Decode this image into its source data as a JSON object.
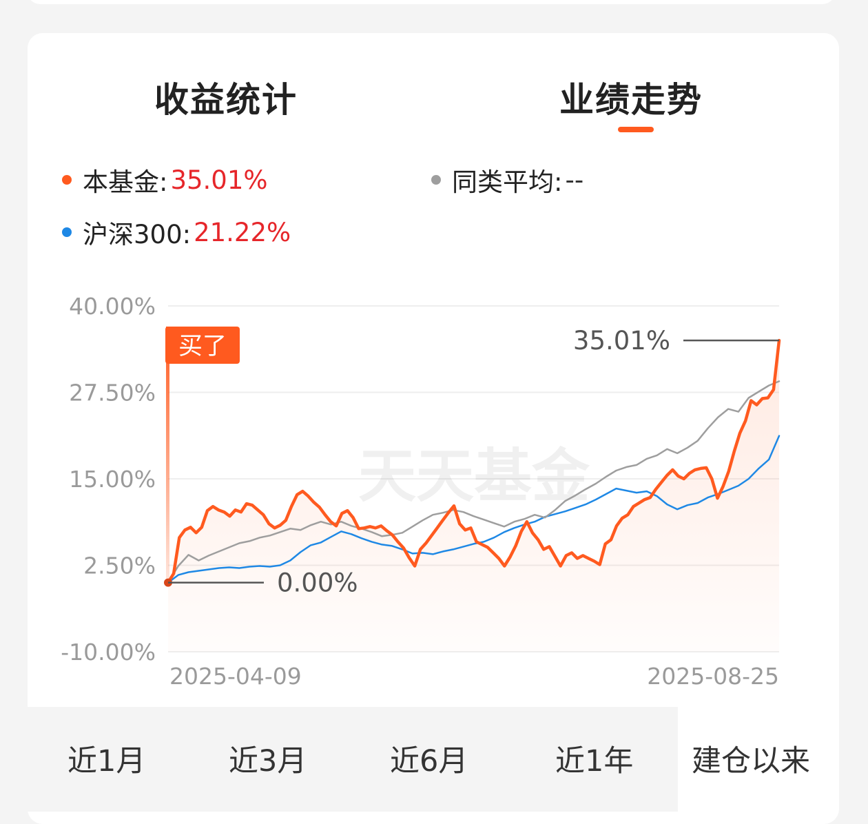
{
  "tabs": [
    {
      "label": "收益统计",
      "active": false
    },
    {
      "label": "业绩走势",
      "active": true
    }
  ],
  "legend": {
    "fund": {
      "label": "本基金:",
      "value": "35.01%",
      "color": "#ff5a1f"
    },
    "peer_avg": {
      "label": "同类平均:",
      "value": "--",
      "color": "#9e9e9e"
    },
    "csi300": {
      "label": "沪深300:",
      "value": "21.22%",
      "color": "#1e88e5"
    }
  },
  "buy_marker": {
    "label": "买了"
  },
  "watermark": "天天基金",
  "period_tabs": [
    {
      "label": "近1月",
      "active": false
    },
    {
      "label": "近3月",
      "active": false
    },
    {
      "label": "近6月",
      "active": false
    },
    {
      "label": "近1年",
      "active": false
    },
    {
      "label": "建仓以来",
      "active": true
    }
  ],
  "chart_data": {
    "type": "line",
    "x_start": "2025-04-09",
    "x_end": "2025-08-25",
    "ylim": [
      -10,
      40
    ],
    "y_ticks": [
      "40.00%",
      "27.50%",
      "15.00%",
      "2.50%",
      "-10.00%"
    ],
    "x_tick_labels": [
      "2025-04-09",
      "2025-08-25"
    ],
    "start_label": "0.00%",
    "end_label": "35.01%",
    "grid": true,
    "series": [
      {
        "name": "本基金",
        "color": "#ff5a1f",
        "values": [
          0.0,
          1.3,
          6.5,
          7.6,
          8.0,
          7.2,
          8.0,
          10.4,
          11.0,
          10.5,
          10.2,
          9.6,
          10.5,
          10.2,
          11.4,
          11.2,
          10.5,
          9.8,
          8.5,
          7.9,
          8.3,
          9.0,
          11.0,
          12.7,
          13.2,
          12.5,
          11.6,
          10.9,
          9.8,
          8.8,
          8.2,
          10.0,
          10.4,
          9.4,
          7.8,
          7.9,
          8.1,
          7.9,
          8.2,
          7.5,
          6.9,
          5.9,
          5.0,
          3.6,
          2.4,
          4.8,
          5.7,
          6.8,
          7.9,
          9.0,
          10.1,
          11.1,
          8.5,
          7.6,
          7.9,
          5.9,
          5.5,
          5.1,
          4.3,
          3.5,
          2.4,
          3.7,
          5.3,
          7.4,
          8.8,
          7.2,
          6.2,
          4.8,
          5.2,
          3.8,
          2.4,
          3.9,
          4.3,
          3.5,
          3.9,
          3.5,
          3.1,
          2.6,
          5.6,
          6.2,
          8.2,
          9.3,
          9.8,
          11.0,
          11.5,
          12.0,
          12.3,
          13.5,
          14.5,
          15.5,
          16.3,
          15.4,
          15.0,
          15.8,
          16.3,
          16.5,
          16.6,
          15.0,
          12.2,
          13.9,
          16.1,
          19.0,
          21.6,
          23.4,
          26.3,
          25.7,
          26.6,
          26.7,
          27.9,
          35.01
        ]
      },
      {
        "name": "同类平均",
        "color": "#9e9e9e",
        "values": [
          0.0,
          2.4,
          4.0,
          3.2,
          3.9,
          4.5,
          5.1,
          5.7,
          6.0,
          6.5,
          6.8,
          7.3,
          7.8,
          7.6,
          8.3,
          8.8,
          8.4,
          8.8,
          8.2,
          7.8,
          7.3,
          6.7,
          6.9,
          7.2,
          8.1,
          9.0,
          9.8,
          10.1,
          10.5,
          10.2,
          9.6,
          9.1,
          8.6,
          8.1,
          8.8,
          9.2,
          9.8,
          9.4,
          10.5,
          11.8,
          12.6,
          13.5,
          14.3,
          15.3,
          16.2,
          16.7,
          17.0,
          17.9,
          18.4,
          19.3,
          18.7,
          19.5,
          20.5,
          22.3,
          23.9,
          25.1,
          24.7,
          26.7,
          27.6,
          28.5,
          29.1
        ]
      },
      {
        "name": "沪深300",
        "color": "#1e88e5",
        "values": [
          0.0,
          1.1,
          1.5,
          1.7,
          1.9,
          2.1,
          2.2,
          2.1,
          2.3,
          2.4,
          2.3,
          2.5,
          3.2,
          4.4,
          5.4,
          5.8,
          6.6,
          7.4,
          7.0,
          6.4,
          5.9,
          5.5,
          5.3,
          4.8,
          4.2,
          4.3,
          4.1,
          4.5,
          4.8,
          5.2,
          5.6,
          5.9,
          6.5,
          7.3,
          7.9,
          8.4,
          8.8,
          9.5,
          9.9,
          10.3,
          10.8,
          11.3,
          12.0,
          12.8,
          13.6,
          13.3,
          13.0,
          13.2,
          12.5,
          11.3,
          10.6,
          11.2,
          11.5,
          12.3,
          12.8,
          13.4,
          14.0,
          15.0,
          16.5,
          17.8,
          21.22
        ]
      }
    ]
  }
}
